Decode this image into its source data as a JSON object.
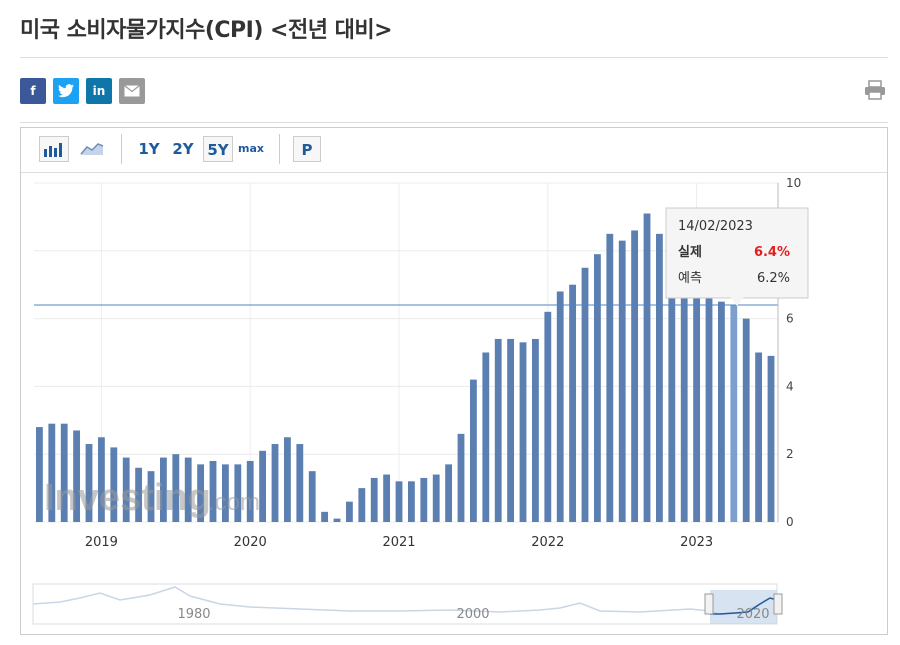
{
  "page": {
    "title": "미국 소비자물가지수(CPI) <전년 대비>"
  },
  "share": {
    "facebook": {
      "label": "f",
      "color": "#3b5998"
    },
    "twitter": {
      "label": "t",
      "color": "#1da1f2"
    },
    "linkedin": {
      "label": "in",
      "color": "#0e76a8"
    },
    "email": {
      "label": "✉",
      "color": "#999999"
    }
  },
  "toolbar": {
    "ranges": [
      "1Y",
      "2Y",
      "5Y",
      "max"
    ],
    "selected_range": "5Y",
    "p_label": "P"
  },
  "tooltip": {
    "date": "14/02/2023",
    "actual_label": "실제",
    "actual_value": "6.4%",
    "forecast_label": "예측",
    "forecast_value": "6.2%"
  },
  "watermark": {
    "brand": "Investing",
    "suffix": ".com"
  },
  "chart_data": {
    "type": "bar",
    "title": "",
    "xlabel": "",
    "ylabel": "",
    "ylim": [
      0,
      10
    ],
    "y_ticks": [
      0,
      2,
      4,
      6,
      8,
      10
    ],
    "x_tick_labels": [
      "2019",
      "2020",
      "2021",
      "2022",
      "2023"
    ],
    "grid": true,
    "reference_line": 6.4,
    "highlight_index": 56,
    "series": [
      {
        "values": [
          2.8,
          2.9,
          2.9,
          2.7,
          2.3,
          2.5,
          2.2,
          1.9,
          1.6,
          1.5,
          1.9,
          2.0,
          1.9,
          1.7,
          1.8,
          1.7,
          1.7,
          1.8,
          2.1,
          2.3,
          2.5,
          2.3,
          1.5,
          0.3,
          0.1,
          0.6,
          1.0,
          1.3,
          1.4,
          1.2,
          1.2,
          1.3,
          1.4,
          1.7,
          2.6,
          4.2,
          5.0,
          5.4,
          5.4,
          5.3,
          5.4,
          6.2,
          6.8,
          7.0,
          7.5,
          7.9,
          8.5,
          8.3,
          8.6,
          9.1,
          8.5,
          8.3,
          8.2,
          7.7,
          7.1,
          6.5,
          6.4,
          6.0,
          5.0,
          4.9
        ]
      }
    ],
    "navigator": {
      "x_tick_labels": [
        "1980",
        "2000",
        "2020"
      ]
    }
  }
}
